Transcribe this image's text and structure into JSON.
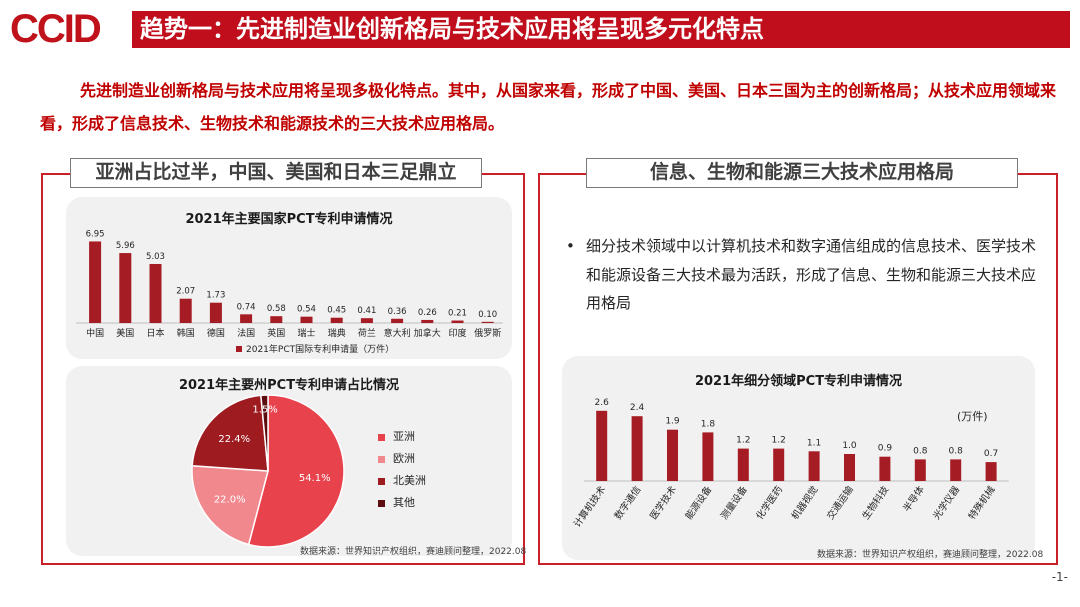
{
  "header": {
    "logo_text": "CCID",
    "title": "趋势一：先进制造业创新格局与技术应用将呈现多元化特点"
  },
  "intro": {
    "text": "先进制造业创新格局与技术应用将呈现多极化特点。其中，从国家来看，形成了中国、美国、日本三国为主的创新格局；从技术应用领域来看，形成了信息技术、生物技术和能源技术的三大技术应用格局。"
  },
  "left_section": {
    "title": "亚洲占比过半，中国、美国和日本三足鼎立",
    "source": "数据来源：世界知识产权组织，赛迪顾问整理，2022.08"
  },
  "right_section": {
    "title": "信息、生物和能源三大技术应用格局",
    "bullet": "细分技术领域中以计算机技术和数字通信组成的信息技术、医学技术和能源设备三大技术最为活跃，形成了信息、生物和能源三大技术应用格局",
    "unit_note": "(万件)",
    "source": "数据来源：世界知识产权组织，赛迪顾问整理，2022.08"
  },
  "colors": {
    "accent": "#c10e1c",
    "bar": "#a61c24",
    "pie": [
      "#e8434d",
      "#f0888d",
      "#9e1b20",
      "#5c0d10"
    ]
  },
  "page_number": "-1-",
  "chart_data": [
    {
      "type": "bar",
      "title": "2021年主要国家PCT专利申请情况",
      "categories": [
        "中国",
        "美国",
        "日本",
        "韩国",
        "德国",
        "法国",
        "英国",
        "瑞士",
        "瑞典",
        "荷兰",
        "意大利",
        "加拿大",
        "印度",
        "俄罗斯"
      ],
      "values": [
        6.95,
        5.96,
        5.03,
        2.07,
        1.73,
        0.74,
        0.58,
        0.54,
        0.45,
        0.41,
        0.36,
        0.26,
        0.21,
        0.1
      ],
      "value_labels": [
        "6.95",
        "5.96",
        "5.03",
        "2.07",
        "1.73",
        "0.74",
        "0.58",
        "0.54",
        "0.45",
        "0.41",
        "0.36",
        "0.26",
        "0.21",
        "0.10"
      ],
      "legend": "2021年PCT国际专利申请量（万件）",
      "ylim": [
        0,
        7.5
      ]
    },
    {
      "type": "pie",
      "title": "2021年主要州PCT专利申请占比情况",
      "labels": [
        "亚洲",
        "欧洲",
        "北美洲",
        "其他"
      ],
      "values": [
        54.1,
        22.0,
        22.4,
        1.5
      ],
      "value_labels": [
        "54.1%",
        "22.0%",
        "22.4%",
        "1.5%"
      ]
    },
    {
      "type": "bar",
      "title": "2021年细分领域PCT专利申请情况",
      "categories": [
        "计算机技术",
        "数字通信",
        "医学技术",
        "能源设备",
        "测量设备",
        "化学医药",
        "机器视觉",
        "交通运输",
        "生物科技",
        "半导体",
        "光学仪器",
        "特殊机械"
      ],
      "values": [
        2.6,
        2.4,
        1.9,
        1.8,
        1.2,
        1.2,
        1.1,
        1.0,
        0.9,
        0.8,
        0.8,
        0.7
      ],
      "value_labels": [
        "2.6",
        "2.4",
        "1.9",
        "1.8",
        "1.2",
        "1.2",
        "1.1",
        "1.0",
        "0.9",
        "0.8",
        "0.8",
        "0.7"
      ],
      "ylim": [
        0,
        3.0
      ]
    }
  ]
}
